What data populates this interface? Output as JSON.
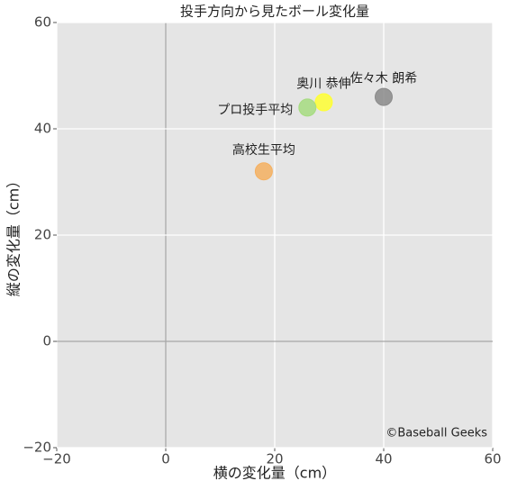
{
  "chart_data": {
    "type": "scatter",
    "title": "投手方向から見たボール変化量",
    "xlabel": "横の変化量（cm）",
    "ylabel": "縦の変化量（cm）",
    "annotation": "©Baseball Geeks",
    "xlim": [
      -20,
      60
    ],
    "ylim": [
      -20,
      60
    ],
    "xticks": [
      {
        "value": -20,
        "label": "−20"
      },
      0,
      20,
      40,
      60
    ],
    "yticks": [
      {
        "value": -20,
        "label": "−20"
      },
      0,
      20,
      40,
      60
    ],
    "grid": true,
    "series": [
      {
        "name": "佐々木 朗希",
        "color": "#8a8a8a",
        "x": [
          40
        ],
        "values": [
          46
        ]
      },
      {
        "name": "奥川 恭伸",
        "color": "#ffff33",
        "x": [
          29
        ],
        "values": [
          45
        ]
      },
      {
        "name": "プロ投手平均",
        "color": "#a6dc80",
        "x": [
          26
        ],
        "values": [
          44
        ]
      },
      {
        "name": "高校生平均",
        "color": "#f5b060",
        "x": [
          18
        ],
        "values": [
          32
        ]
      }
    ]
  }
}
